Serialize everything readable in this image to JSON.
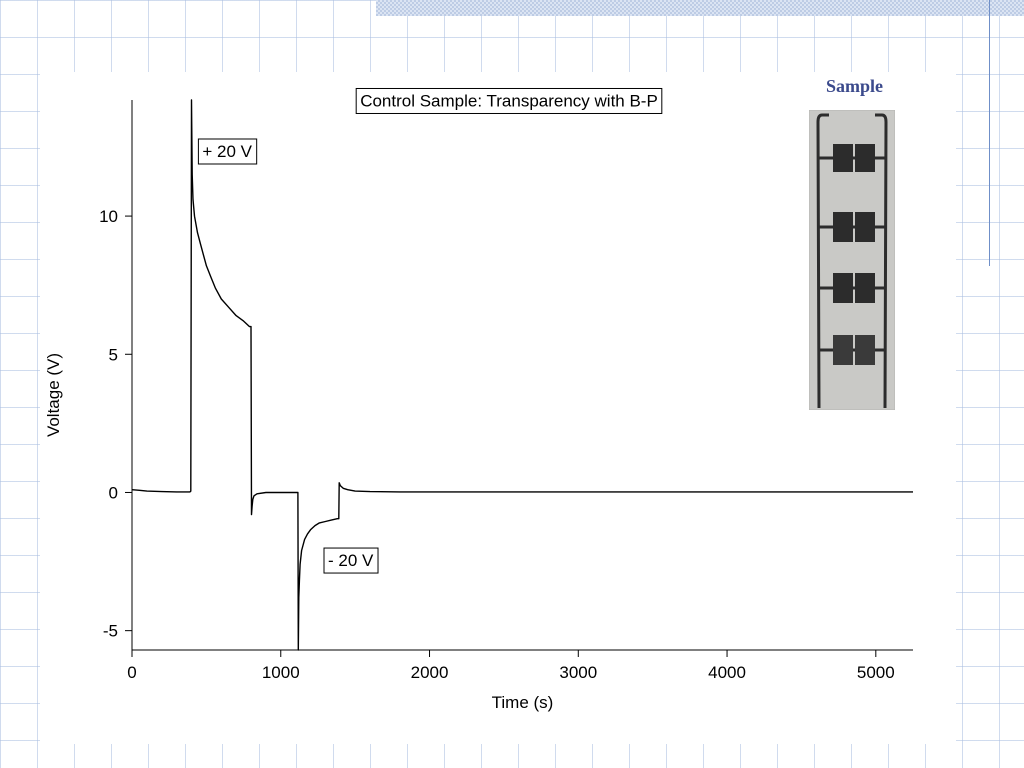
{
  "chart_data": {
    "type": "line",
    "title": "Control Sample: Transparency with B-P",
    "xlabel": "Time (s)",
    "ylabel": "Voltage (V)",
    "xlim": [
      0,
      5250
    ],
    "ylim": [
      -5.7,
      14.2
    ],
    "xticks": [
      0,
      1000,
      2000,
      3000,
      4000,
      5000
    ],
    "xtick_labels": [
      "0",
      "1000",
      "2000",
      "3000",
      "4000",
      "5000"
    ],
    "yticks": [
      -5,
      0,
      5,
      10
    ],
    "ytick_labels": [
      "-5",
      "0",
      "5",
      "10"
    ],
    "grid": false,
    "series": [
      {
        "x": [
          0,
          50,
          100,
          200,
          300,
          390,
          395,
          400,
          405,
          410,
          420,
          440,
          460,
          480,
          500,
          530,
          560,
          600,
          650,
          700,
          750,
          790,
          800,
          803,
          807,
          812,
          820,
          840,
          900,
          1000,
          1100,
          1110,
          1115,
          1118,
          1121,
          1125,
          1130,
          1140,
          1160,
          1180,
          1200,
          1230,
          1260,
          1300,
          1340,
          1380,
          1390,
          1393,
          1400,
          1420,
          1450,
          1500,
          1600,
          1800,
          2000,
          2500,
          3000,
          3500,
          4000,
          4500,
          5000,
          5250
        ],
        "y": [
          0.1,
          0.08,
          0.05,
          0.03,
          0.02,
          0.02,
          0.05,
          14.2,
          11.5,
          10.6,
          10.0,
          9.4,
          9.0,
          8.6,
          8.2,
          7.8,
          7.4,
          7.0,
          6.7,
          6.4,
          6.2,
          6.0,
          6.0,
          -0.8,
          -0.5,
          -0.25,
          -0.12,
          -0.05,
          0.0,
          0.0,
          0.0,
          0.0,
          0.0,
          -5.7,
          -3.8,
          -3.2,
          -2.6,
          -2.1,
          -1.7,
          -1.5,
          -1.35,
          -1.2,
          -1.1,
          -1.05,
          -1.0,
          -0.95,
          -0.95,
          0.35,
          0.25,
          0.15,
          0.1,
          0.05,
          0.03,
          0.02,
          0.02,
          0.02,
          0.02,
          0.02,
          0.02,
          0.02,
          0.02,
          0.02
        ]
      }
    ],
    "annotations": [
      {
        "text": "+ 20 V",
        "x": 640,
        "y": 12.3
      },
      {
        "text": "- 20 V",
        "x": 1470,
        "y": -2.5
      }
    ]
  },
  "inset": {
    "label": "Sample",
    "photo_bg": "#c9c9c6",
    "ink_color": "#2c2c2c"
  },
  "colors": {
    "trace": "#000000",
    "axis": "#000000",
    "sample_label": "#3b4a8c"
  }
}
